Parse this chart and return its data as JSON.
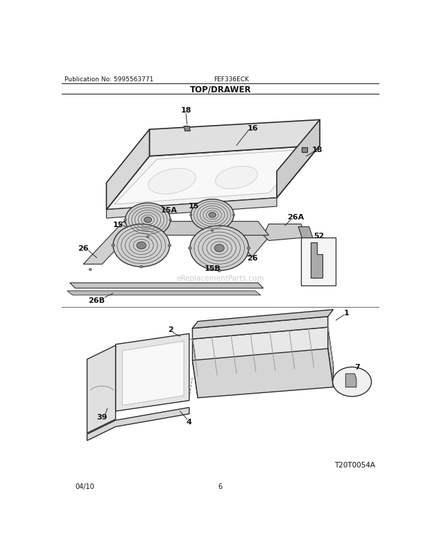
{
  "title": "TOP/DRAWER",
  "pub_no": "Publication No: 5995563771",
  "model": "FEF336ECK",
  "date": "04/10",
  "page": "6",
  "diagram_code": "T20T0054A",
  "bg_color": "#ffffff",
  "line_color": "#2a2a2a",
  "watermark": "eReplacementParts.com"
}
